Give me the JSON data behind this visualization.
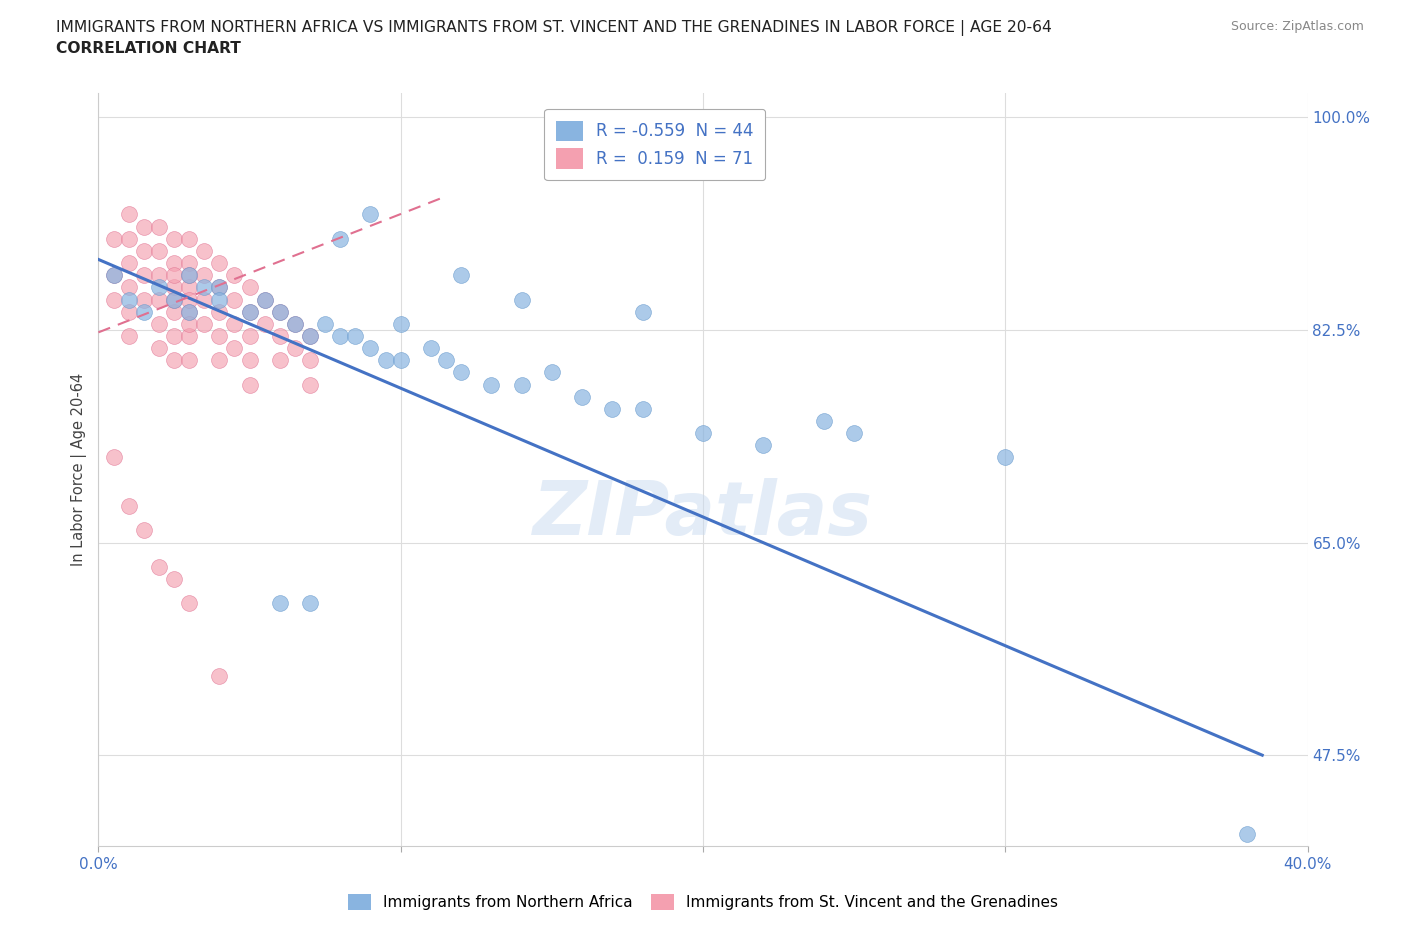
{
  "title_line1": "IMMIGRANTS FROM NORTHERN AFRICA VS IMMIGRANTS FROM ST. VINCENT AND THE GRENADINES IN LABOR FORCE | AGE 20-64",
  "title_line2": "CORRELATION CHART",
  "source_text": "Source: ZipAtlas.com",
  "ylabel": "In Labor Force | Age 20-64",
  "legend_label1": "Immigrants from Northern Africa",
  "legend_label2": "Immigrants from St. Vincent and the Grenadines",
  "R1": -0.559,
  "N1": 44,
  "R2": 0.159,
  "N2": 71,
  "color1": "#89b4e0",
  "color2": "#f4a0b0",
  "trendline1_color": "#4472c4",
  "trendline2_color": "#e07090",
  "watermark": "ZIPatlas",
  "xlim": [
    0.0,
    0.4
  ],
  "ylim": [
    0.4,
    1.02
  ],
  "y_ticks": [
    0.475,
    0.65,
    0.825,
    1.0
  ],
  "y_tick_labels": [
    "47.5%",
    "65.0%",
    "82.5%",
    "100.0%"
  ],
  "trendline1_x0": 0.0,
  "trendline1_y0": 0.883,
  "trendline1_x1": 0.385,
  "trendline1_y1": 0.475,
  "trendline2_x0": 0.0,
  "trendline2_y0": 0.823,
  "trendline2_x1": 0.115,
  "trendline2_y1": 0.935,
  "scatter1_x": [
    0.005,
    0.01,
    0.015,
    0.02,
    0.025,
    0.03,
    0.03,
    0.035,
    0.04,
    0.04,
    0.05,
    0.055,
    0.06,
    0.065,
    0.07,
    0.075,
    0.08,
    0.085,
    0.09,
    0.095,
    0.1,
    0.1,
    0.11,
    0.115,
    0.12,
    0.13,
    0.14,
    0.15,
    0.16,
    0.17,
    0.18,
    0.2,
    0.22,
    0.09,
    0.08,
    0.12,
    0.14,
    0.18,
    0.24,
    0.25,
    0.3,
    0.07,
    0.06,
    0.38
  ],
  "scatter1_y": [
    0.87,
    0.85,
    0.84,
    0.86,
    0.85,
    0.87,
    0.84,
    0.86,
    0.86,
    0.85,
    0.84,
    0.85,
    0.84,
    0.83,
    0.82,
    0.83,
    0.82,
    0.82,
    0.81,
    0.8,
    0.83,
    0.8,
    0.81,
    0.8,
    0.79,
    0.78,
    0.78,
    0.79,
    0.77,
    0.76,
    0.76,
    0.74,
    0.73,
    0.92,
    0.9,
    0.87,
    0.85,
    0.84,
    0.75,
    0.74,
    0.72,
    0.6,
    0.6,
    0.41
  ],
  "scatter2_x": [
    0.005,
    0.005,
    0.005,
    0.01,
    0.01,
    0.01,
    0.01,
    0.01,
    0.01,
    0.015,
    0.015,
    0.015,
    0.015,
    0.02,
    0.02,
    0.02,
    0.02,
    0.02,
    0.02,
    0.025,
    0.025,
    0.025,
    0.025,
    0.025,
    0.025,
    0.025,
    0.025,
    0.03,
    0.03,
    0.03,
    0.03,
    0.03,
    0.03,
    0.03,
    0.03,
    0.03,
    0.035,
    0.035,
    0.035,
    0.035,
    0.04,
    0.04,
    0.04,
    0.04,
    0.04,
    0.045,
    0.045,
    0.045,
    0.045,
    0.05,
    0.05,
    0.05,
    0.05,
    0.05,
    0.055,
    0.055,
    0.06,
    0.06,
    0.06,
    0.065,
    0.065,
    0.07,
    0.07,
    0.07,
    0.005,
    0.01,
    0.015,
    0.02,
    0.025,
    0.03,
    0.04
  ],
  "scatter2_y": [
    0.9,
    0.87,
    0.85,
    0.92,
    0.9,
    0.88,
    0.86,
    0.84,
    0.82,
    0.91,
    0.89,
    0.87,
    0.85,
    0.91,
    0.89,
    0.87,
    0.85,
    0.83,
    0.81,
    0.9,
    0.88,
    0.86,
    0.84,
    0.82,
    0.8,
    0.87,
    0.85,
    0.9,
    0.88,
    0.86,
    0.84,
    0.82,
    0.8,
    0.87,
    0.85,
    0.83,
    0.89,
    0.87,
    0.85,
    0.83,
    0.88,
    0.86,
    0.84,
    0.82,
    0.8,
    0.87,
    0.85,
    0.83,
    0.81,
    0.86,
    0.84,
    0.82,
    0.8,
    0.78,
    0.85,
    0.83,
    0.84,
    0.82,
    0.8,
    0.83,
    0.81,
    0.82,
    0.8,
    0.78,
    0.72,
    0.68,
    0.66,
    0.63,
    0.62,
    0.6,
    0.54
  ]
}
